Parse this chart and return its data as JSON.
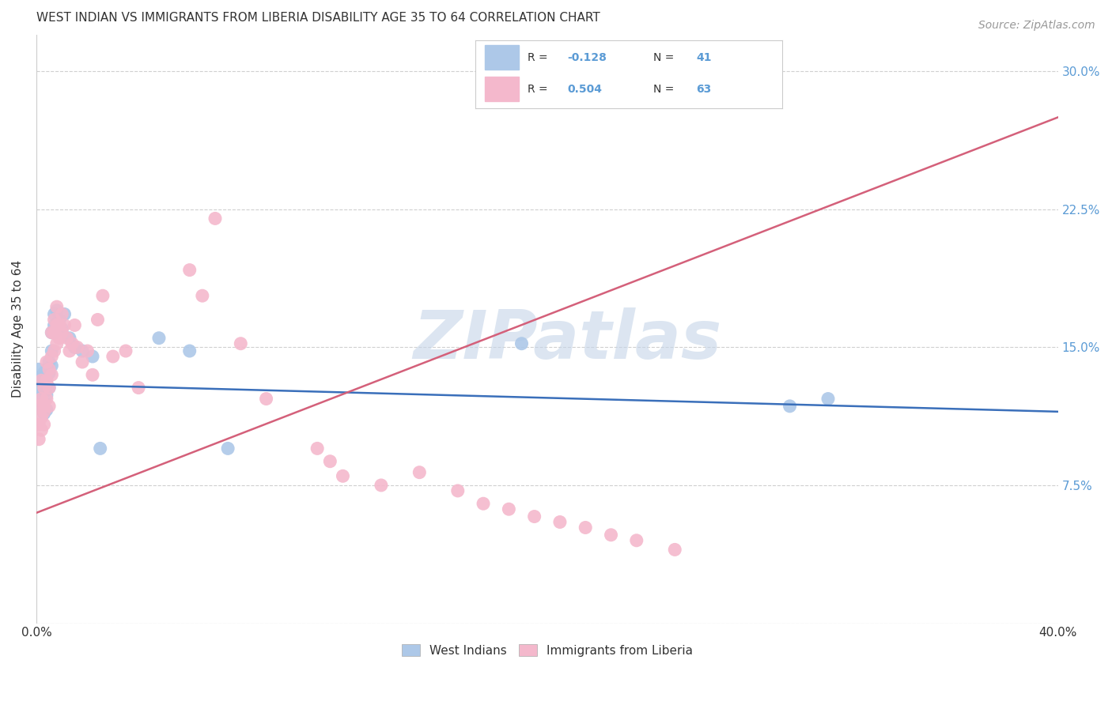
{
  "title": "WEST INDIAN VS IMMIGRANTS FROM LIBERIA DISABILITY AGE 35 TO 64 CORRELATION CHART",
  "source": "Source: ZipAtlas.com",
  "ylabel": "Disability Age 35 to 64",
  "xlim": [
    0.0,
    0.4
  ],
  "ylim": [
    0.0,
    0.32
  ],
  "xtick_positions": [
    0.0,
    0.08,
    0.16,
    0.24,
    0.32,
    0.4
  ],
  "xtick_labels": [
    "0.0%",
    "",
    "",
    "",
    "",
    "40.0%"
  ],
  "ytick_positions": [
    0.0,
    0.075,
    0.15,
    0.225,
    0.3
  ],
  "ytick_labels_right": [
    "",
    "7.5%",
    "15.0%",
    "22.5%",
    "30.0%"
  ],
  "background_color": "#ffffff",
  "grid_color": "#d0d0d0",
  "watermark_text": "ZIPatlas",
  "watermark_color": "#c5d5e8",
  "legend_R1": "-0.128",
  "legend_N1": "41",
  "legend_R2": "0.504",
  "legend_N2": "63",
  "color_blue": "#adc8e8",
  "color_pink": "#f4b8cc",
  "line_color_blue": "#3a6fba",
  "line_color_pink": "#d4607a",
  "blue_line_x0": 0.0,
  "blue_line_y0": 0.13,
  "blue_line_x1": 0.4,
  "blue_line_y1": 0.115,
  "pink_line_x0": 0.0,
  "pink_line_y0": 0.06,
  "pink_line_x1": 0.4,
  "pink_line_y1": 0.275,
  "west_indian_x": [
    0.001,
    0.001,
    0.001,
    0.002,
    0.002,
    0.002,
    0.002,
    0.003,
    0.003,
    0.003,
    0.003,
    0.003,
    0.004,
    0.004,
    0.004,
    0.004,
    0.005,
    0.005,
    0.005,
    0.006,
    0.006,
    0.006,
    0.007,
    0.007,
    0.007,
    0.008,
    0.008,
    0.009,
    0.01,
    0.011,
    0.013,
    0.015,
    0.018,
    0.022,
    0.025,
    0.048,
    0.06,
    0.075,
    0.19,
    0.295,
    0.31
  ],
  "west_indian_y": [
    0.132,
    0.138,
    0.128,
    0.134,
    0.13,
    0.122,
    0.118,
    0.126,
    0.136,
    0.128,
    0.12,
    0.114,
    0.138,
    0.13,
    0.124,
    0.116,
    0.142,
    0.136,
    0.128,
    0.158,
    0.148,
    0.14,
    0.162,
    0.168,
    0.158,
    0.162,
    0.17,
    0.165,
    0.16,
    0.168,
    0.155,
    0.15,
    0.148,
    0.145,
    0.095,
    0.155,
    0.148,
    0.095,
    0.152,
    0.118,
    0.122
  ],
  "liberia_x": [
    0.001,
    0.001,
    0.001,
    0.002,
    0.002,
    0.002,
    0.002,
    0.003,
    0.003,
    0.003,
    0.003,
    0.004,
    0.004,
    0.004,
    0.005,
    0.005,
    0.005,
    0.006,
    0.006,
    0.006,
    0.007,
    0.007,
    0.007,
    0.008,
    0.008,
    0.008,
    0.009,
    0.009,
    0.01,
    0.01,
    0.011,
    0.012,
    0.013,
    0.014,
    0.015,
    0.016,
    0.018,
    0.02,
    0.022,
    0.024,
    0.026,
    0.03,
    0.035,
    0.04,
    0.06,
    0.065,
    0.07,
    0.08,
    0.09,
    0.11,
    0.115,
    0.12,
    0.135,
    0.15,
    0.165,
    0.175,
    0.185,
    0.195,
    0.205,
    0.215,
    0.225,
    0.235,
    0.25
  ],
  "liberia_y": [
    0.108,
    0.118,
    0.1,
    0.112,
    0.122,
    0.132,
    0.105,
    0.118,
    0.128,
    0.115,
    0.108,
    0.122,
    0.132,
    0.142,
    0.138,
    0.128,
    0.118,
    0.135,
    0.145,
    0.158,
    0.148,
    0.158,
    0.165,
    0.152,
    0.162,
    0.172,
    0.162,
    0.155,
    0.158,
    0.168,
    0.162,
    0.155,
    0.148,
    0.152,
    0.162,
    0.15,
    0.142,
    0.148,
    0.135,
    0.165,
    0.178,
    0.145,
    0.148,
    0.128,
    0.192,
    0.178,
    0.22,
    0.152,
    0.122,
    0.095,
    0.088,
    0.08,
    0.075,
    0.082,
    0.072,
    0.065,
    0.062,
    0.058,
    0.055,
    0.052,
    0.048,
    0.045,
    0.04
  ]
}
